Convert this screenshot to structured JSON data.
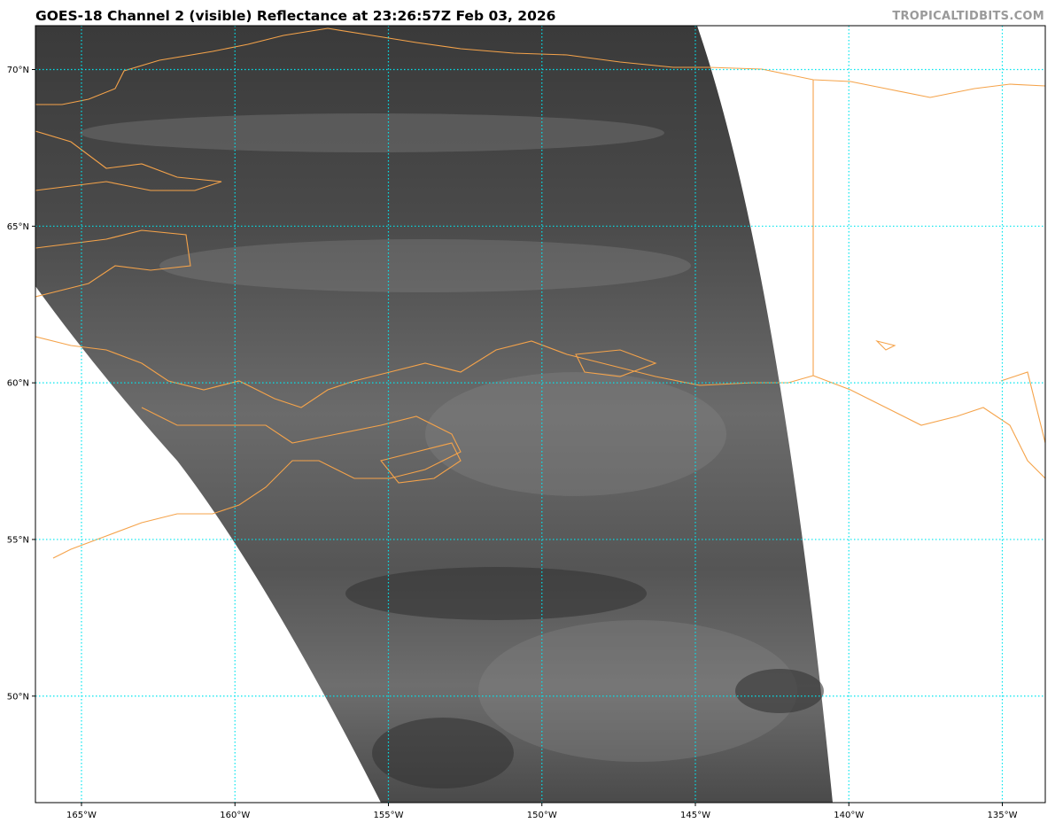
{
  "header": {
    "title": "GOES-18 Channel 2 (visible) Reflectance at 23:26:57Z Feb 03, 2026",
    "credit": "TROPICALTIDBITS.COM"
  },
  "map": {
    "projection": "lat-lon",
    "lon_range": [
      -166.5,
      -133.6
    ],
    "lat_range": [
      46.6,
      71.4
    ],
    "gridlines": {
      "lon": [
        -165,
        -160,
        -155,
        -150,
        -145,
        -140,
        -135
      ],
      "lat": [
        70,
        65,
        60,
        55,
        50
      ],
      "color": "#00e5ee",
      "style": "dotted"
    },
    "lon_labels": [
      "165°W",
      "160°W",
      "155°W",
      "150°W",
      "145°W",
      "140°W",
      "135°W"
    ],
    "lat_labels": [
      "70°N",
      "65°N",
      "60°N",
      "55°N",
      "50°N"
    ],
    "coastline_color": "#f5a34a",
    "imagery": "visible reflectance grayscale"
  }
}
